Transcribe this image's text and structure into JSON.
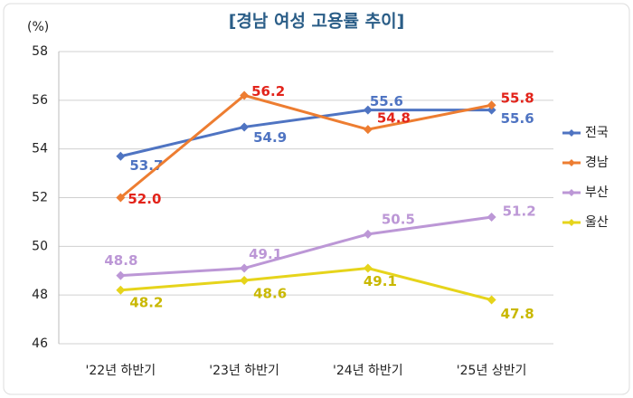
{
  "chart_data": {
    "type": "line",
    "title": "[경남 여성 고용률 추이]",
    "y_label": "(%)",
    "categories": [
      "'22년 하반기",
      "'23년 하반기",
      "'24년 하반기",
      "'25년 상반기"
    ],
    "series": [
      {
        "name": "전국",
        "color": "#4f74c2",
        "label_color": "#4f74c2",
        "values": [
          53.7,
          54.9,
          55.6,
          55.6
        ],
        "value_labels": [
          "53.7",
          "54.9",
          "55.6",
          "55.6"
        ]
      },
      {
        "name": "경남",
        "color": "#ed7d31",
        "label_color": "#e2231a",
        "values": [
          52.0,
          56.2,
          54.8,
          55.8
        ],
        "value_labels": [
          "52.0",
          "56.2",
          "54.8",
          "55.8"
        ]
      },
      {
        "name": "부산",
        "color": "#bc97d6",
        "label_color": "#bc97d6",
        "values": [
          48.8,
          49.1,
          50.5,
          51.2
        ],
        "value_labels": [
          "48.8",
          "49.1",
          "50.5",
          "51.2"
        ]
      },
      {
        "name": "울산",
        "color": "#e6d41b",
        "label_color": "#c9b800",
        "values": [
          48.2,
          48.6,
          49.1,
          47.8
        ],
        "value_labels": [
          "48.2",
          "48.6",
          "49.1",
          "47.8"
        ]
      }
    ],
    "ylim": [
      46,
      58
    ],
    "yticks": [
      46,
      48,
      50,
      52,
      54,
      56,
      58
    ],
    "grid": true,
    "legend": "right"
  }
}
